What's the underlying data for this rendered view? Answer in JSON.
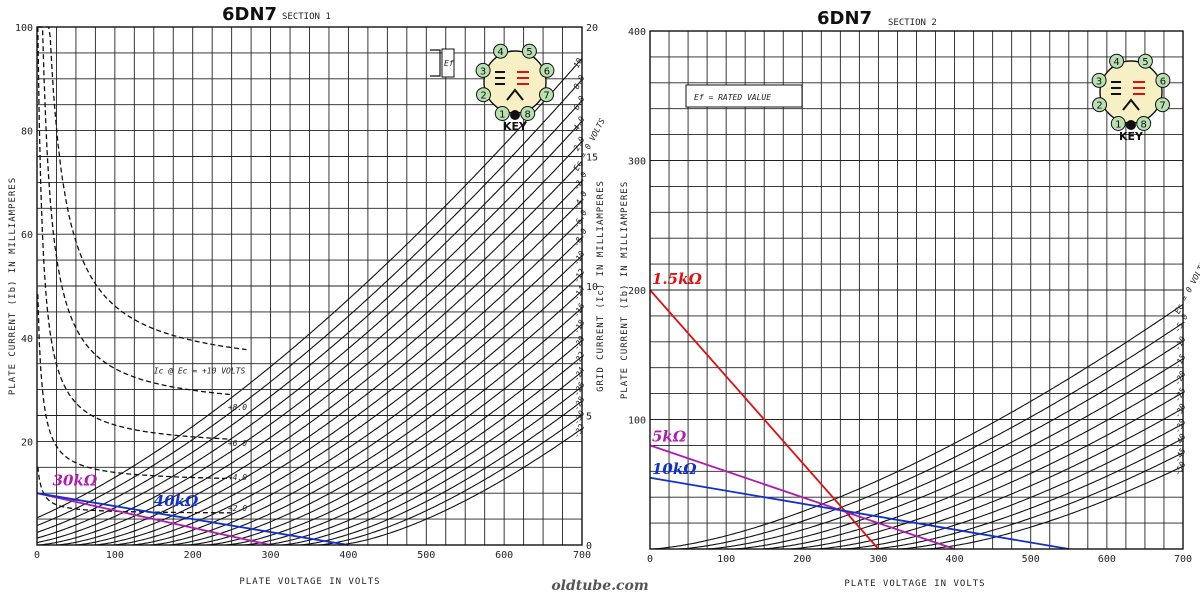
{
  "watermark": "oldtube.com",
  "colors": {
    "red": "#dd1111",
    "magenta": "#b01cb0",
    "blue": "#1030d0"
  },
  "chart_data": [
    {
      "type": "line",
      "title": "6DN7",
      "subtitle": "SECTION 1",
      "xlabel": "PLATE VOLTAGE IN VOLTS",
      "ylabel": "PLATE CURRENT (Ib) IN MILLIAMPERES",
      "y2label": "GRID CURRENT (Ic) IN MILLIAMPERES",
      "xlim": [
        0,
        700
      ],
      "ylim": [
        0,
        100
      ],
      "y2lim": [
        0,
        20
      ],
      "xticks": [
        "0",
        "100",
        "200",
        "300",
        "400",
        "500",
        "600",
        "700"
      ],
      "yticks": [
        "100",
        "80",
        "60",
        "40",
        "20"
      ],
      "y2ticks": [
        "20",
        "15",
        "10",
        "5",
        "0"
      ],
      "ef_label": "Ef",
      "grid": true,
      "plate_curves": {
        "labels": [
          "10",
          "8.0",
          "6.0",
          "4.0",
          "2.0",
          "Ec = 0 VOLTS",
          "-2.0",
          "-4.0",
          "-6.0",
          "-8.0",
          "-10",
          "-12",
          "-14",
          "-16",
          "-18",
          "-20",
          "-22",
          "-24",
          "-26",
          "-28",
          "-30",
          "-32"
        ],
        "grid_volts": [
          10,
          8,
          6,
          4,
          2,
          0,
          -2,
          -4,
          -6,
          -8,
          -10,
          -12,
          -14,
          -16,
          -18,
          -20,
          -22,
          -24,
          -26,
          -28,
          -30,
          -32
        ],
        "mu": 12,
        "k": 0.004
      },
      "grid_current_curves": [
        {
          "label": "Ic @ Ec = +10 VOLTS",
          "ec": 10,
          "plateau_mA": 6.5
        },
        {
          "label": "+8.0",
          "ec": 8,
          "plateau_mA": 5.1
        },
        {
          "label": "+6.0",
          "ec": 6,
          "plateau_mA": 3.7
        },
        {
          "label": "+4.0",
          "ec": 4,
          "plateau_mA": 2.4
        },
        {
          "label": "+2.0",
          "ec": 2,
          "plateau_mA": 1.2
        }
      ],
      "load_lines": [
        {
          "name": "30kΩ",
          "color": "#b01cb0",
          "x": [
            0,
            300
          ],
          "y": [
            10,
            0
          ]
        },
        {
          "name": "40kΩ",
          "color": "#1030d0",
          "x": [
            0,
            400
          ],
          "y": [
            10,
            0
          ]
        }
      ],
      "pinout": {
        "pins": [
          "1",
          "2",
          "3",
          "4",
          "5",
          "6",
          "7",
          "8"
        ],
        "key_label": "KEY"
      }
    },
    {
      "type": "line",
      "title": "6DN7",
      "subtitle": "SECTION 2",
      "xlabel": "PLATE VOLTAGE IN VOLTS",
      "ylabel": "PLATE CURRENT (Ib) IN MILLIAMPERES",
      "xlim": [
        0,
        700
      ],
      "ylim": [
        0,
        400
      ],
      "xticks": [
        "0",
        "100",
        "200",
        "300",
        "400",
        "500",
        "600",
        "700"
      ],
      "yticks": [
        "400",
        "300",
        "200",
        "100"
      ],
      "ef_note": "Ef = RATED VALUE",
      "grid": true,
      "plate_curves": {
        "labels": [
          "Ec = 0 VOLTS",
          "-5.0",
          "-10",
          "-15",
          "-20",
          "-25",
          "-30",
          "-35",
          "-40",
          "-45",
          "-50"
        ],
        "grid_volts": [
          0,
          -5,
          -10,
          -15,
          -20,
          -25,
          -30,
          -35,
          -40,
          -45,
          -50
        ],
        "mu": 7.2,
        "k": 0.0102
      },
      "load_lines": [
        {
          "name": "1.5kΩ",
          "color": "#dd1111",
          "x": [
            0,
            300
          ],
          "y": [
            200,
            0
          ]
        },
        {
          "name": "5kΩ",
          "color": "#b01cb0",
          "x": [
            0,
            400
          ],
          "y": [
            80,
            0
          ]
        },
        {
          "name": "10kΩ",
          "color": "#1030d0",
          "x": [
            0,
            550
          ],
          "y": [
            55,
            0
          ]
        }
      ],
      "pinout": {
        "pins": [
          "1",
          "2",
          "3",
          "4",
          "5",
          "6",
          "7",
          "8"
        ],
        "key_label": "KEY"
      }
    }
  ]
}
